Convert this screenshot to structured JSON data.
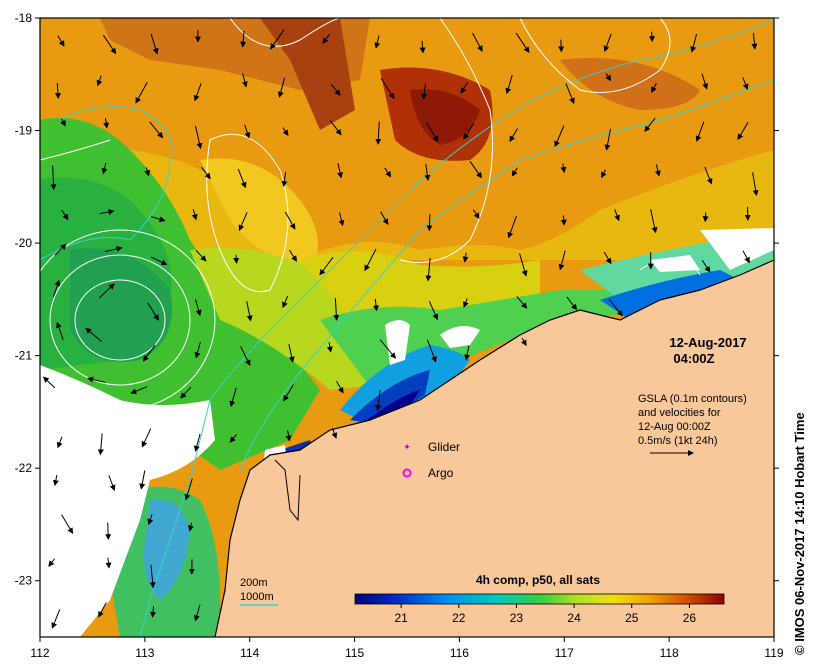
{
  "map": {
    "timestamp_date": "12-Aug-2017",
    "timestamp_time": "04:00Z",
    "gsla_lines": [
      "GSLA (0.1m contours)",
      "and velocities for",
      "12-Aug 00:00Z",
      "0.5m/s (1kt 24h)"
    ],
    "legend_glider": "Glider",
    "legend_argo": "Argo",
    "depth_200": "200m",
    "depth_1000": "1000m",
    "colorbar_title": "4h comp, p50, all sats",
    "colorbar_ticks": [
      "21",
      "22",
      "23",
      "24",
      "25",
      "26"
    ],
    "credit": "© IMOS 06-Nov-2017 14:10 Hobart Time",
    "x_ticks": [
      "112",
      "113",
      "114",
      "115",
      "116",
      "117",
      "118",
      "119"
    ],
    "y_ticks": [
      "-18",
      "-19",
      "-20",
      "-21",
      "-22",
      "-23"
    ],
    "colors": {
      "land": "#f8c79a",
      "glider": "#c000c0",
      "argo": "#ff00ff",
      "isobath": "#3ad0d0"
    }
  },
  "chart_data": {
    "type": "heatmap",
    "xlim": [
      112,
      119
    ],
    "ylim": [
      -23.5,
      -18
    ],
    "colorbar_range": [
      20.2,
      26.6
    ]
  }
}
